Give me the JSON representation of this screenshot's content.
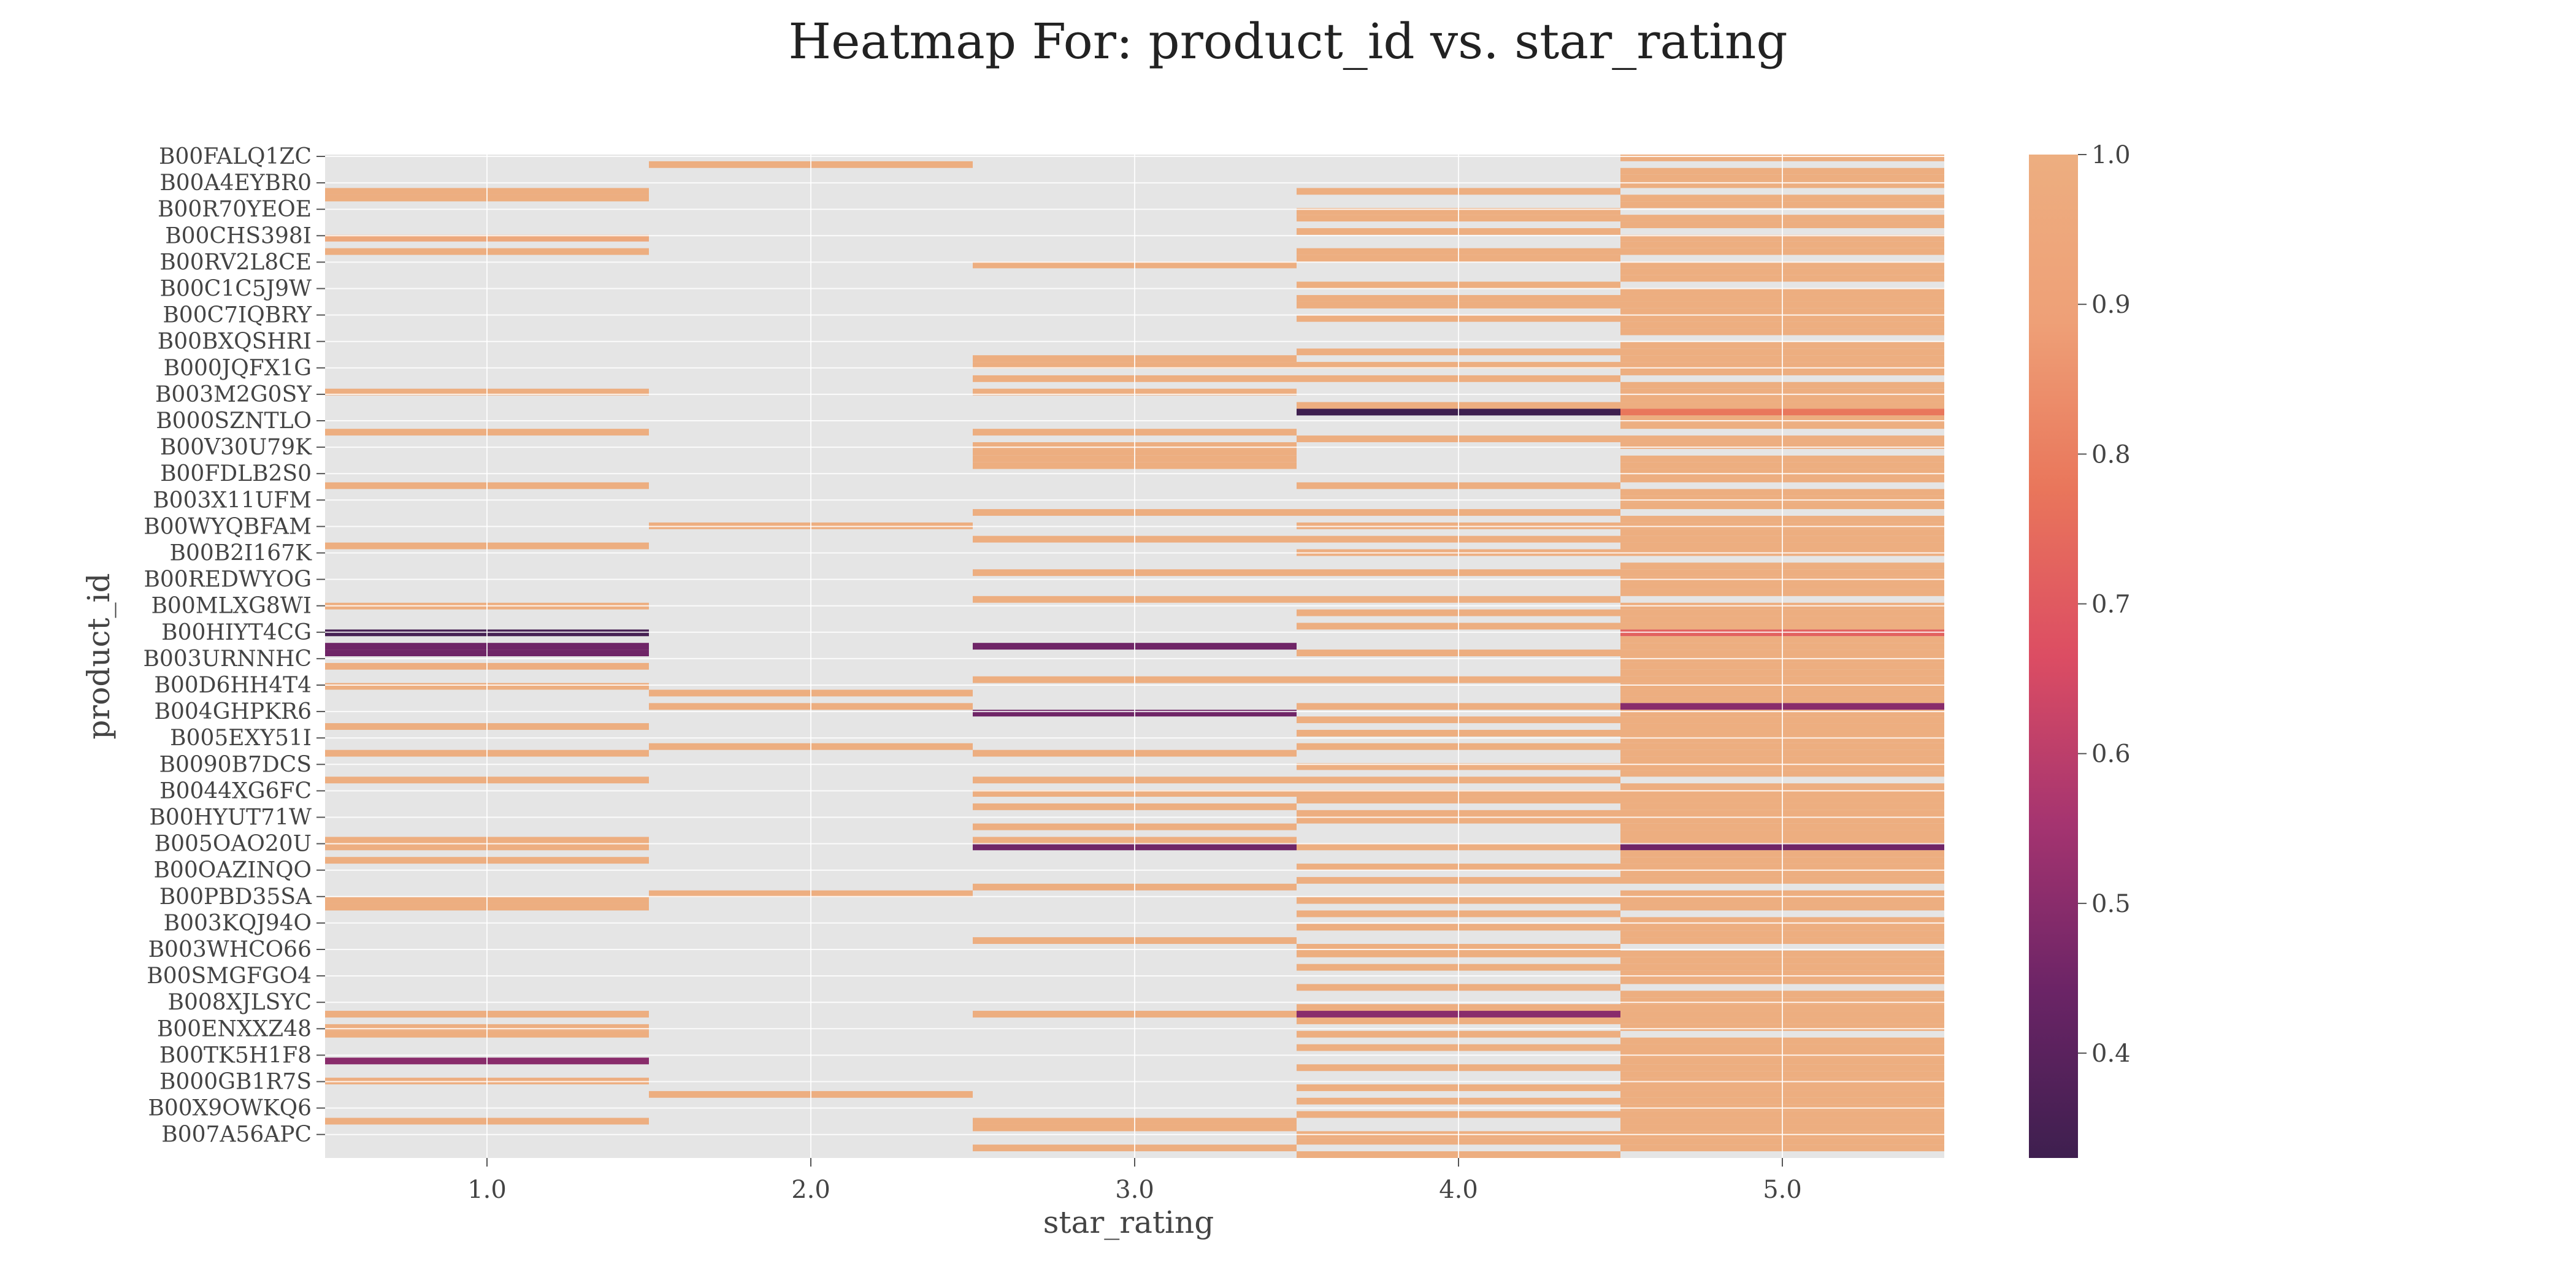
{
  "chart_data": {
    "type": "heatmap",
    "title": "Heatmap For: product_id vs. star_rating",
    "xlabel": "star_rating",
    "ylabel": "product_id",
    "x_categories": [
      "1.0",
      "2.0",
      "3.0",
      "4.0",
      "5.0"
    ],
    "y_tick_labels": [
      "B00FALQ1ZC",
      "B00A4EYBR0",
      "B00R70YEOE",
      "B00CHS398I",
      "B00RV2L8CE",
      "B00C1C5J9W",
      "B00C7IQBRY",
      "B00BXQSHRI",
      "B000JQFX1G",
      "B003M2G0SY",
      "B000SZNTLO",
      "B00V30U79K",
      "B00FDLB2S0",
      "B003X11UFM",
      "B00WYQBFAM",
      "B00B2I167K",
      "B00REDWYOG",
      "B00MLXG8WI",
      "B00HIYT4CG",
      "B003URNNHC",
      "B00D6HH4T4",
      "B004GHPKR6",
      "B005EXY51I",
      "B0090B7DCS",
      "B0044XG6FC",
      "B00HYUT71W",
      "B005OAO20U",
      "B00OAZINQO",
      "B00PBD35SA",
      "B003KQJ94O",
      "B003WHCO66",
      "B00SMGFGO4",
      "B008XJLSYC",
      "B00ENXXZ48",
      "B00TK5H1F8",
      "B000GB1R7S",
      "B00X9OWKQ6",
      "B007A56APC"
    ],
    "row_count": 150,
    "colorbar": {
      "min": 0.33,
      "max": 1.0,
      "ticks": [
        "0.4",
        "0.5",
        "0.6",
        "0.7",
        "0.8",
        "0.9",
        "1.0"
      ],
      "tick_values": [
        0.4,
        0.5,
        0.6,
        0.7,
        0.8,
        0.9,
        1.0
      ]
    },
    "colormap": [
      "#3e1f4f",
      "#6b2466",
      "#a53470",
      "#dc4d63",
      "#e9765b",
      "#eea077",
      "#edae80"
    ],
    "background_color": "#e5e5e5",
    "grid": true,
    "nonzero_cells": [
      [
        1,
        6,
        1.0
      ],
      [
        1,
        12,
        0.95
      ],
      [
        1,
        58,
        1.0
      ],
      [
        1,
        76,
        1.0
      ],
      [
        1,
        112,
        1.0
      ],
      [
        1,
        35,
        1.0
      ],
      [
        1,
        49,
        1.0
      ],
      [
        1,
        41,
        1.0
      ],
      [
        1,
        14,
        1.0
      ],
      [
        1,
        71,
        0.35
      ],
      [
        1,
        73,
        0.45
      ],
      [
        1,
        74,
        0.45
      ],
      [
        1,
        67,
        1.0
      ],
      [
        1,
        79,
        1.0
      ],
      [
        1,
        85,
        1.0
      ],
      [
        1,
        89,
        1.0
      ],
      [
        1,
        93,
        1.0
      ],
      [
        1,
        102,
        1.0
      ],
      [
        1,
        128,
        1.0
      ],
      [
        1,
        135,
        0.5
      ],
      [
        1,
        138,
        1.0
      ],
      [
        1,
        144,
        1.0
      ],
      [
        1,
        103,
        1.0
      ],
      [
        1,
        105,
        1.0
      ],
      [
        1,
        111,
        1.0
      ],
      [
        1,
        130,
        1.0
      ],
      [
        1,
        131,
        1.0
      ],
      [
        1,
        5,
        1.0
      ],
      [
        2,
        1,
        1.0
      ],
      [
        2,
        55,
        1.0
      ],
      [
        2,
        80,
        1.0
      ],
      [
        2,
        82,
        1.0
      ],
      [
        2,
        88,
        1.0
      ],
      [
        2,
        110,
        1.0
      ],
      [
        2,
        140,
        1.0
      ],
      [
        3,
        16,
        1.0
      ],
      [
        3,
        30,
        1.0
      ],
      [
        3,
        31,
        1.0
      ],
      [
        3,
        33,
        1.0
      ],
      [
        3,
        35,
        1.0
      ],
      [
        3,
        41,
        1.0
      ],
      [
        3,
        43,
        1.0
      ],
      [
        3,
        44,
        1.0
      ],
      [
        3,
        45,
        1.0
      ],
      [
        3,
        46,
        1.0
      ],
      [
        3,
        53,
        1.0
      ],
      [
        3,
        57,
        1.0
      ],
      [
        3,
        62,
        1.0
      ],
      [
        3,
        66,
        1.0
      ],
      [
        3,
        73,
        0.45
      ],
      [
        3,
        78,
        1.0
      ],
      [
        3,
        83,
        0.45
      ],
      [
        3,
        89,
        1.0
      ],
      [
        3,
        93,
        1.0
      ],
      [
        3,
        95,
        1.0
      ],
      [
        3,
        97,
        1.0
      ],
      [
        3,
        100,
        1.0
      ],
      [
        3,
        102,
        1.0
      ],
      [
        3,
        103,
        0.45
      ],
      [
        3,
        109,
        1.0
      ],
      [
        3,
        117,
        1.0
      ],
      [
        3,
        128,
        1.0
      ],
      [
        3,
        144,
        1.0
      ],
      [
        3,
        145,
        1.0
      ],
      [
        3,
        148,
        1.0
      ],
      [
        4,
        5,
        1.0
      ],
      [
        4,
        8,
        1.0
      ],
      [
        4,
        9,
        1.0
      ],
      [
        4,
        11,
        1.0
      ],
      [
        4,
        14,
        1.0
      ],
      [
        4,
        15,
        1.0
      ],
      [
        4,
        19,
        1.0
      ],
      [
        4,
        21,
        1.0
      ],
      [
        4,
        22,
        1.0
      ],
      [
        4,
        24,
        1.0
      ],
      [
        4,
        29,
        1.0
      ],
      [
        4,
        31,
        1.0
      ],
      [
        4,
        33,
        1.0
      ],
      [
        4,
        37,
        1.0
      ],
      [
        4,
        38,
        0.33
      ],
      [
        4,
        42,
        1.0
      ],
      [
        4,
        49,
        1.0
      ],
      [
        4,
        53,
        1.0
      ],
      [
        4,
        55,
        1.0
      ],
      [
        4,
        57,
        1.0
      ],
      [
        4,
        59,
        1.0
      ],
      [
        4,
        62,
        1.0
      ],
      [
        4,
        66,
        1.0
      ],
      [
        4,
        68,
        1.0
      ],
      [
        4,
        70,
        1.0
      ],
      [
        4,
        74,
        1.0
      ],
      [
        4,
        78,
        1.0
      ],
      [
        4,
        82,
        1.0
      ],
      [
        4,
        84,
        1.0
      ],
      [
        4,
        86,
        1.0
      ],
      [
        4,
        88,
        1.0
      ],
      [
        4,
        91,
        1.0
      ],
      [
        4,
        93,
        1.0
      ],
      [
        4,
        95,
        1.0
      ],
      [
        4,
        96,
        1.0
      ],
      [
        4,
        98,
        1.0
      ],
      [
        4,
        99,
        1.0
      ],
      [
        4,
        103,
        1.0
      ],
      [
        4,
        106,
        1.0
      ],
      [
        4,
        108,
        1.0
      ],
      [
        4,
        111,
        1.0
      ],
      [
        4,
        113,
        1.0
      ],
      [
        4,
        115,
        1.0
      ],
      [
        4,
        118,
        1.0
      ],
      [
        4,
        119,
        1.0
      ],
      [
        4,
        121,
        1.0
      ],
      [
        4,
        124,
        1.0
      ],
      [
        4,
        127,
        1.0
      ],
      [
        4,
        128,
        0.5
      ],
      [
        4,
        129,
        1.0
      ],
      [
        4,
        131,
        1.0
      ],
      [
        4,
        133,
        1.0
      ],
      [
        4,
        136,
        1.0
      ],
      [
        4,
        139,
        1.0
      ],
      [
        4,
        141,
        1.0
      ],
      [
        4,
        143,
        1.0
      ],
      [
        4,
        146,
        1.0
      ],
      [
        4,
        147,
        1.0
      ],
      [
        4,
        149,
        1.0
      ],
      [
        5,
        0,
        1.0
      ],
      [
        5,
        2,
        1.0
      ],
      [
        5,
        3,
        1.0
      ],
      [
        5,
        4,
        1.0
      ],
      [
        5,
        6,
        1.0
      ],
      [
        5,
        7,
        1.0
      ],
      [
        5,
        9,
        1.0
      ],
      [
        5,
        10,
        1.0
      ],
      [
        5,
        12,
        1.0
      ],
      [
        5,
        13,
        1.0
      ],
      [
        5,
        14,
        1.0
      ],
      [
        5,
        16,
        1.0
      ],
      [
        5,
        17,
        1.0
      ],
      [
        5,
        18,
        1.0
      ],
      [
        5,
        20,
        1.0
      ],
      [
        5,
        21,
        1.0
      ],
      [
        5,
        22,
        1.0
      ],
      [
        5,
        23,
        1.0
      ],
      [
        5,
        24,
        1.0
      ],
      [
        5,
        25,
        1.0
      ],
      [
        5,
        26,
        1.0
      ],
      [
        5,
        28,
        1.0
      ],
      [
        5,
        29,
        1.0
      ],
      [
        5,
        30,
        1.0
      ],
      [
        5,
        31,
        1.0
      ],
      [
        5,
        32,
        1.0
      ],
      [
        5,
        34,
        1.0
      ],
      [
        5,
        35,
        1.0
      ],
      [
        5,
        36,
        1.0
      ],
      [
        5,
        37,
        1.0
      ],
      [
        5,
        38,
        0.78
      ],
      [
        5,
        39,
        1.0
      ],
      [
        5,
        40,
        1.0
      ],
      [
        5,
        42,
        1.0
      ],
      [
        5,
        43,
        1.0
      ],
      [
        5,
        45,
        1.0
      ],
      [
        5,
        46,
        1.0
      ],
      [
        5,
        47,
        1.0
      ],
      [
        5,
        48,
        1.0
      ],
      [
        5,
        50,
        1.0
      ],
      [
        5,
        51,
        1.0
      ],
      [
        5,
        52,
        1.0
      ],
      [
        5,
        54,
        1.0
      ],
      [
        5,
        55,
        1.0
      ],
      [
        5,
        56,
        1.0
      ],
      [
        5,
        57,
        1.0
      ],
      [
        5,
        58,
        1.0
      ],
      [
        5,
        59,
        1.0
      ],
      [
        5,
        61,
        1.0
      ],
      [
        5,
        62,
        1.0
      ],
      [
        5,
        63,
        1.0
      ],
      [
        5,
        64,
        1.0
      ],
      [
        5,
        65,
        1.0
      ],
      [
        5,
        67,
        1.0
      ],
      [
        5,
        68,
        1.0
      ],
      [
        5,
        69,
        1.0
      ],
      [
        5,
        70,
        1.0
      ],
      [
        5,
        71,
        0.72
      ],
      [
        5,
        72,
        1.0
      ],
      [
        5,
        73,
        1.0
      ],
      [
        5,
        74,
        1.0
      ],
      [
        5,
        75,
        1.0
      ],
      [
        5,
        76,
        1.0
      ],
      [
        5,
        77,
        1.0
      ],
      [
        5,
        78,
        1.0
      ],
      [
        5,
        79,
        1.0
      ],
      [
        5,
        80,
        1.0
      ],
      [
        5,
        81,
        1.0
      ],
      [
        5,
        82,
        0.5
      ],
      [
        5,
        83,
        1.0
      ],
      [
        5,
        84,
        1.0
      ],
      [
        5,
        85,
        1.0
      ],
      [
        5,
        86,
        1.0
      ],
      [
        5,
        87,
        1.0
      ],
      [
        5,
        88,
        1.0
      ],
      [
        5,
        89,
        1.0
      ],
      [
        5,
        90,
        1.0
      ],
      [
        5,
        91,
        1.0
      ],
      [
        5,
        92,
        1.0
      ],
      [
        5,
        94,
        1.0
      ],
      [
        5,
        95,
        1.0
      ],
      [
        5,
        96,
        1.0
      ],
      [
        5,
        97,
        1.0
      ],
      [
        5,
        98,
        1.0
      ],
      [
        5,
        99,
        1.0
      ],
      [
        5,
        100,
        1.0
      ],
      [
        5,
        101,
        1.0
      ],
      [
        5,
        102,
        1.0
      ],
      [
        5,
        103,
        0.45
      ],
      [
        5,
        104,
        1.0
      ],
      [
        5,
        105,
        1.0
      ],
      [
        5,
        106,
        1.0
      ],
      [
        5,
        107,
        1.0
      ],
      [
        5,
        108,
        1.0
      ],
      [
        5,
        110,
        1.0
      ],
      [
        5,
        111,
        1.0
      ],
      [
        5,
        112,
        1.0
      ],
      [
        5,
        114,
        1.0
      ],
      [
        5,
        115,
        1.0
      ],
      [
        5,
        116,
        1.0
      ],
      [
        5,
        117,
        1.0
      ],
      [
        5,
        119,
        1.0
      ],
      [
        5,
        120,
        1.0
      ],
      [
        5,
        121,
        1.0
      ],
      [
        5,
        122,
        1.0
      ],
      [
        5,
        123,
        1.0
      ],
      [
        5,
        125,
        1.0
      ],
      [
        5,
        126,
        1.0
      ],
      [
        5,
        127,
        1.0
      ],
      [
        5,
        128,
        1.0
      ],
      [
        5,
        129,
        1.0
      ],
      [
        5,
        130,
        1.0
      ],
      [
        5,
        132,
        1.0
      ],
      [
        5,
        133,
        1.0
      ],
      [
        5,
        134,
        1.0
      ],
      [
        5,
        135,
        1.0
      ],
      [
        5,
        136,
        1.0
      ],
      [
        5,
        137,
        1.0
      ],
      [
        5,
        138,
        1.0
      ],
      [
        5,
        139,
        1.0
      ],
      [
        5,
        140,
        1.0
      ],
      [
        5,
        141,
        1.0
      ],
      [
        5,
        142,
        1.0
      ],
      [
        5,
        143,
        1.0
      ],
      [
        5,
        144,
        1.0
      ],
      [
        5,
        145,
        1.0
      ],
      [
        5,
        146,
        1.0
      ],
      [
        5,
        147,
        1.0
      ],
      [
        5,
        148,
        1.0
      ]
    ]
  }
}
